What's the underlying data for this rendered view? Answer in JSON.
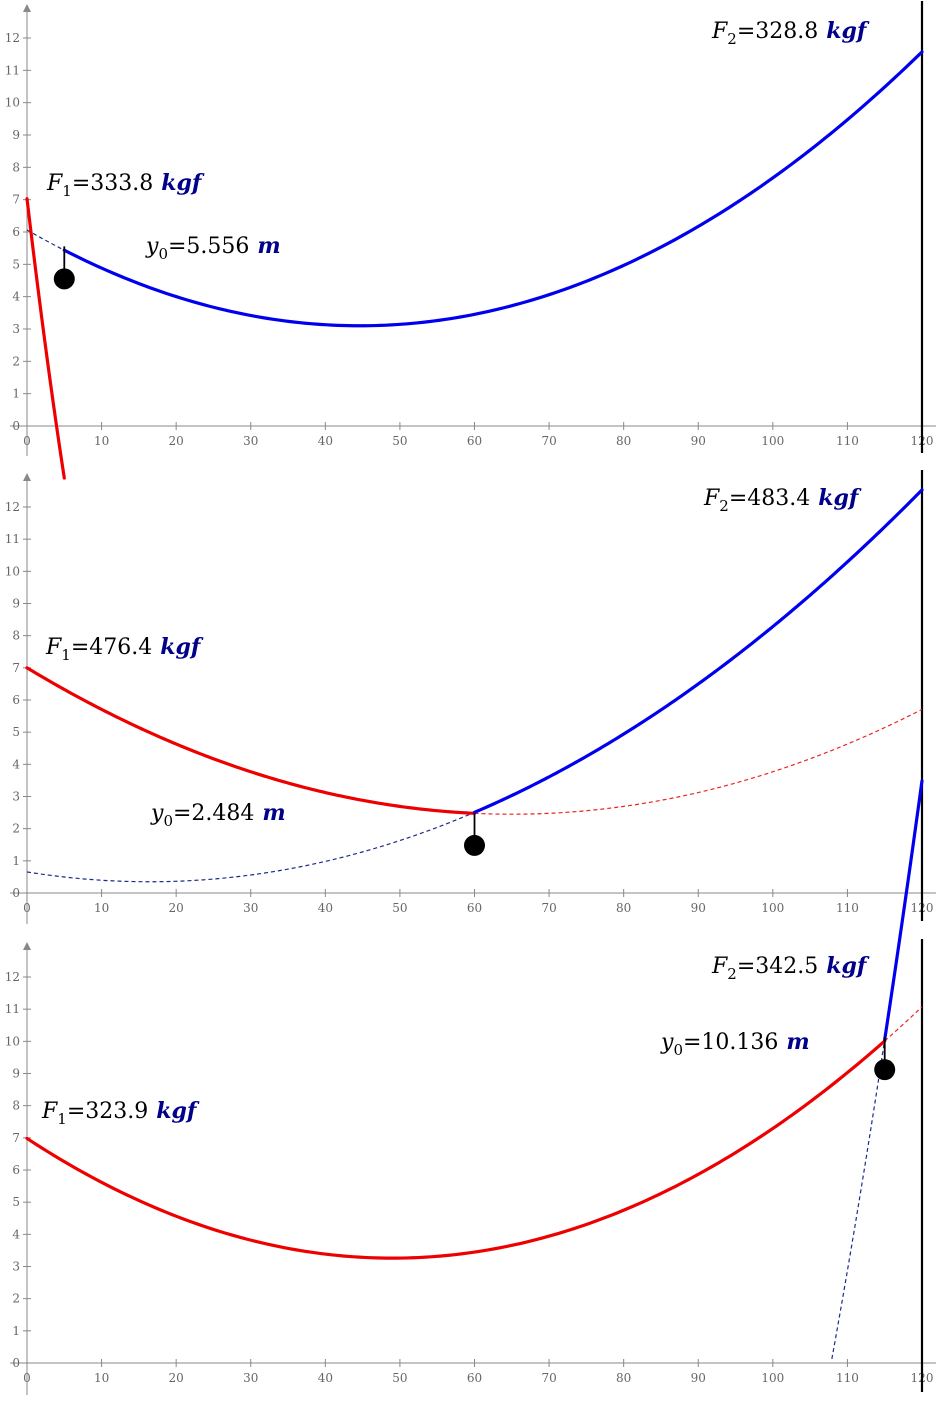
{
  "colors": {
    "left_cable": "#ee0000",
    "right_cable": "#0000ee",
    "dashed_left": "#ee2222",
    "dashed_right": "#1c2a8c",
    "unit": "#00008b",
    "axis": "#888888"
  },
  "chart_data": [
    {
      "type": "line",
      "title": "",
      "x_ticks": [
        0,
        10,
        20,
        30,
        40,
        50,
        60,
        70,
        80,
        90,
        100,
        110,
        120
      ],
      "y_ticks": [
        0,
        1,
        2,
        3,
        4,
        5,
        6,
        7,
        8,
        9,
        10,
        11,
        12
      ],
      "xlim": [
        0,
        120
      ],
      "ylim": [
        0,
        12
      ],
      "anchors": {
        "left": [
          0,
          7
        ],
        "right": [
          120,
          12
        ]
      },
      "load": {
        "x": 5,
        "y0": 5.556,
        "weight_y": 4.55
      },
      "left_cable_curve": {
        "vertex_x": 21.7,
        "vertex_y": -14.16,
        "a": 0.045
      },
      "right_cable_curve": {
        "vertex_x": 44.6,
        "vertex_y": 3.1,
        "a": 0.00149
      },
      "left_dashed_extent": [
        5,
        28.3
      ],
      "right_dashed_extent": [
        0,
        5
      ],
      "labels": {
        "F1": {
          "symbol": "F",
          "sub": "1",
          "value": "=333.8",
          "unit": "kgf"
        },
        "F2": {
          "symbol": "F",
          "sub": "2",
          "value": "=328.8",
          "unit": "kgf"
        },
        "y0": {
          "symbol": "y",
          "sub": "0",
          "value": "=5.556",
          "unit": "m"
        }
      }
    },
    {
      "type": "line",
      "title": "",
      "x_ticks": [
        0,
        10,
        20,
        30,
        40,
        50,
        60,
        70,
        80,
        90,
        100,
        110,
        120
      ],
      "y_ticks": [
        0,
        1,
        2,
        3,
        4,
        5,
        6,
        7,
        8,
        9,
        10,
        11,
        12
      ],
      "xlim": [
        0,
        120
      ],
      "ylim": [
        0,
        12
      ],
      "anchors": {
        "left": [
          0,
          7
        ],
        "right": [
          120,
          12
        ]
      },
      "load": {
        "x": 60,
        "y0": 2.484,
        "weight_y": 1.48
      },
      "left_cable_curve": {
        "vertex_x": 65,
        "vertex_y": 2.45,
        "a": 0.001077
      },
      "right_cable_curve": {
        "vertex_x": 16.4,
        "vertex_y": 0.35,
        "a": 0.001135
      },
      "left_dashed_extent": [
        60,
        120
      ],
      "right_dashed_extent": [
        0,
        60
      ],
      "labels": {
        "F1": {
          "symbol": "F",
          "sub": "1",
          "value": "=476.4",
          "unit": "kgf"
        },
        "F2": {
          "symbol": "F",
          "sub": "2",
          "value": "=483.4",
          "unit": "kgf"
        },
        "y0": {
          "symbol": "y",
          "sub": "0",
          "value": "=2.484",
          "unit": "m"
        }
      }
    },
    {
      "type": "line",
      "title": "",
      "x_ticks": [
        0,
        10,
        20,
        30,
        40,
        50,
        60,
        70,
        80,
        90,
        100,
        110,
        120
      ],
      "y_ticks": [
        0,
        1,
        2,
        3,
        4,
        5,
        6,
        7,
        8,
        9,
        10,
        11,
        12
      ],
      "xlim": [
        0,
        120
      ],
      "ylim": [
        0,
        12
      ],
      "anchors": {
        "left": [
          0,
          7
        ],
        "right": [
          120,
          12
        ]
      },
      "load": {
        "x": 115,
        "y0": 10.136,
        "weight_y": 9.12
      },
      "left_cable_curve": {
        "vertex_x": 49,
        "vertex_y": 3.26,
        "a": 0.00155
      },
      "right_cable_curve": {
        "vertex_x": 70.66,
        "vertex_y": -23.7,
        "a": 0.01717
      },
      "left_dashed_extent": [
        115,
        120
      ],
      "right_dashed_extent": [
        82.6,
        115
      ],
      "labels": {
        "F1": {
          "symbol": "F",
          "sub": "1",
          "value": "=323.9",
          "unit": "kgf"
        },
        "F2": {
          "symbol": "F",
          "sub": "2",
          "value": "=342.5",
          "unit": "kgf"
        },
        "y0": {
          "symbol": "y",
          "sub": "0",
          "value": "=10.136",
          "unit": "m"
        }
      }
    }
  ]
}
